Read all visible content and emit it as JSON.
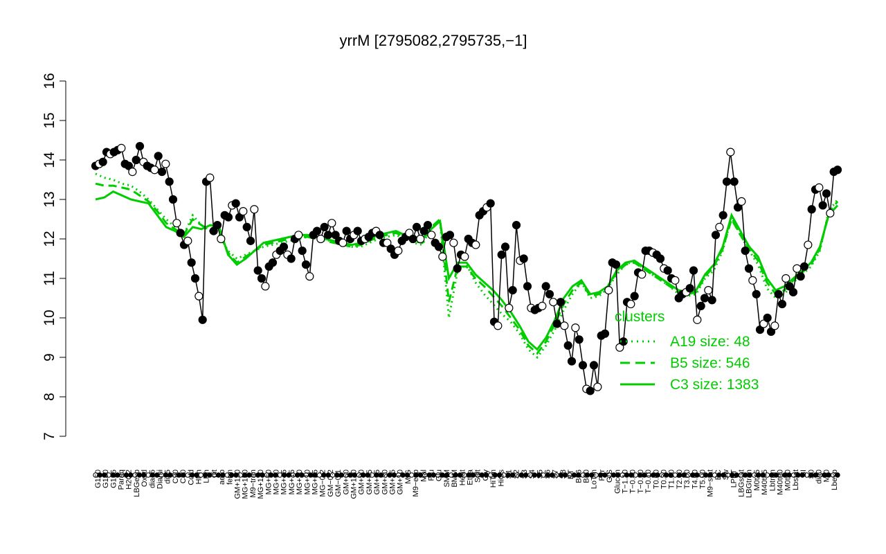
{
  "chart_data": {
    "type": "line",
    "title": "yrrM [2795082,2795735,−1]",
    "xlabel": "",
    "ylabel": "",
    "ylim": [
      7,
      16
    ],
    "y_ticks": [
      7,
      8,
      9,
      10,
      11,
      12,
      13,
      14,
      15,
      16
    ],
    "grid": false,
    "x_tick_labels": [
      "G150",
      "G180",
      "G135",
      "Paraq",
      "H2O2",
      "LBGexp",
      "Oxctl",
      "dia15",
      "Diami",
      "dia5",
      "C90",
      "C30",
      "Cold",
      "HPh",
      "LPh",
      "nit",
      "aero",
      "ferm",
      "GM+150",
      "MG+150",
      "M9−tran",
      "MG+120",
      "MG+60",
      "MG+90",
      "MG+45",
      "MG+15",
      "MG+30",
      "MG+10",
      "MG+25",
      "MG−0.2",
      "GM−0.2",
      "GM−0.1",
      "GM+60",
      "GM+120",
      "GM+90",
      "GM+45",
      "GM+15",
      "GM+30",
      "GM+25",
      "GM+10",
      "M/G",
      "M9−exp",
      "Mal",
      "Fru",
      "Glu",
      "SMM",
      "BMM",
      "Heat",
      "Etha",
      "Salt",
      "Gly",
      "HiTm",
      "HiOs",
      "S1",
      "S2",
      "S3",
      "S4",
      "S5",
      "S6",
      "S7",
      "S8",
      "BT",
      "B36",
      "B60",
      "LoTm",
      "Pyr",
      "G/S",
      "Glucon",
      "T−1.10",
      "T−0.40",
      "T−0.30",
      "T−0.10",
      "T0.00",
      "T0.30",
      "T1.00",
      "T2.00",
      "T3.00",
      "T4.00",
      "T5.00",
      "M9−stat",
      "BC",
      "Sw",
      "LPhT",
      "LBGstat",
      "LBGtran",
      "M0t45",
      "M40t45",
      "Lbtran",
      "M40t90",
      "M0t90",
      "Lbstat",
      "BI",
      "S0",
      "dia0",
      "Mt0",
      "Lbexp"
    ],
    "legend": {
      "title": "clusters",
      "placement": "right",
      "entries": [
        {
          "label": "A19 size: 48",
          "style": "dotted"
        },
        {
          "label": "B5 size: 546",
          "style": "dashed"
        },
        {
          "label": "C3 size: 1383",
          "style": "solid"
        }
      ]
    },
    "line_color": "#00cc00",
    "n_conditions": 170,
    "values": [
      13.85,
      13.9,
      13.95,
      14.2,
      14.15,
      14.2,
      14.25,
      14.3,
      13.9,
      13.85,
      13.7,
      14.0,
      14.35,
      13.95,
      13.85,
      13.8,
      13.75,
      14.1,
      13.7,
      13.9,
      13.45,
      13.0,
      12.4,
      12.15,
      11.85,
      11.95,
      11.4,
      11.0,
      10.55,
      9.95,
      13.45,
      13.55,
      12.2,
      12.35,
      12.0,
      12.6,
      12.55,
      12.85,
      12.9,
      12.55,
      12.7,
      12.3,
      11.95,
      12.75,
      11.2,
      11.0,
      10.8,
      11.3,
      11.4,
      11.6,
      11.7,
      11.8,
      11.6,
      11.5,
      12.0,
      12.1,
      11.7,
      11.35,
      11.05,
      12.1,
      12.2,
      12.0,
      12.3,
      12.1,
      12.4,
      12.1,
      11.95,
      11.9,
      12.2,
      12.0,
      12.1,
      12.2,
      11.95,
      12.0,
      12.05,
      12.15,
      12.2,
      12.1,
      11.9,
      11.9,
      11.75,
      11.6,
      11.7,
      11.95,
      12.05,
      12.15,
      12.0,
      12.3,
      12.0,
      12.2,
      12.35,
      12.1,
      11.9,
      11.8,
      11.55,
      12.05,
      12.1,
      11.9,
      11.25,
      11.6,
      11.55,
      12.0,
      11.9,
      11.85,
      12.6,
      12.7,
      12.8,
      12.9,
      9.9,
      9.8,
      11.6,
      11.8,
      10.25,
      10.7,
      12.35,
      11.45,
      11.5,
      10.8,
      10.25,
      10.2,
      10.25,
      10.3,
      10.8,
      10.6,
      10.4,
      9.85,
      10.4,
      9.8,
      9.3,
      8.9,
      9.75,
      9.45,
      8.8,
      8.2,
      8.15,
      8.8,
      8.25,
      9.55,
      9.6,
      10.7,
      11.4,
      11.35,
      9.25,
      9.4,
      10.4,
      10.35,
      10.55,
      11.15,
      11.1,
      11.7,
      11.7,
      11.65,
      11.6,
      11.5,
      11.25,
      11.2,
      11.0,
      10.95,
      10.5,
      10.6,
      10.65,
      10.75,
      11.2,
      9.95,
      10.3,
      10.5,
      10.7,
      10.45,
      12.1,
      12.3,
      12.6,
      13.45,
      14.2,
      13.45,
      12.8,
      12.95,
      11.7,
      11.25,
      10.95,
      10.6,
      9.7,
      9.85,
      10.0,
      9.65,
      9.8,
      10.6,
      10.35,
      11.0,
      10.8,
      10.65,
      11.25,
      11.05,
      11.3,
      11.85,
      12.75,
      13.25,
      13.3,
      12.85,
      13.15,
      12.65,
      13.7,
      13.75
    ],
    "series": [
      {
        "name": "A19 size: 48",
        "style": "dotted",
        "values": [
          13.65,
          13.55,
          13.5,
          13.4,
          13.35,
          13.2,
          13.0,
          12.75,
          12.5,
          12.3,
          12.1,
          12.6,
          12.35,
          12.2,
          12.1,
          11.7,
          11.5,
          11.6,
          11.7,
          11.8,
          11.85,
          11.9,
          11.95,
          12.0,
          12.05,
          12.0,
          12.0,
          11.9,
          11.85,
          11.8,
          11.8,
          11.9,
          12.0,
          12.05,
          12.1,
          12.0,
          11.9,
          11.85,
          12.3,
          12.45,
          10.0,
          11.2,
          11.35,
          10.9,
          10.6,
          10.35,
          10.1,
          9.9,
          9.6,
          9.2,
          9.0,
          9.3,
          9.7,
          10.2,
          10.6,
          10.9,
          10.5,
          10.55,
          10.75,
          11.1,
          11.35,
          11.45,
          11.25,
          11.1,
          10.95,
          10.8,
          10.6,
          10.55,
          10.6,
          11.0,
          11.2,
          11.7,
          12.55,
          12.1,
          11.7,
          11.35,
          10.75,
          10.5,
          10.6,
          10.9,
          11.1,
          11.3,
          11.7,
          12.7,
          13.0
        ]
      },
      {
        "name": "B5 size: 546",
        "style": "dashed",
        "values": [
          13.4,
          13.35,
          13.35,
          13.3,
          13.25,
          13.1,
          12.95,
          12.7,
          12.4,
          12.25,
          12.1,
          12.5,
          12.35,
          12.2,
          12.15,
          11.65,
          11.4,
          11.55,
          11.7,
          11.85,
          11.9,
          11.95,
          12.0,
          12.05,
          12.05,
          12.0,
          11.95,
          11.9,
          11.85,
          11.8,
          11.85,
          11.95,
          12.05,
          12.1,
          12.15,
          12.05,
          11.95,
          11.9,
          12.3,
          12.5,
          10.4,
          11.3,
          11.3,
          11.0,
          10.8,
          10.55,
          10.3,
          10.0,
          9.7,
          9.3,
          9.1,
          9.4,
          9.85,
          10.35,
          10.7,
          10.9,
          10.55,
          10.6,
          10.8,
          11.15,
          11.35,
          11.4,
          11.25,
          11.1,
          10.95,
          10.8,
          10.65,
          10.6,
          10.65,
          11.05,
          11.3,
          11.75,
          12.5,
          12.1,
          11.75,
          11.45,
          10.9,
          10.6,
          10.7,
          10.95,
          11.15,
          11.35,
          11.75,
          12.65,
          12.95
        ]
      },
      {
        "name": "C3 size: 1383",
        "style": "solid",
        "values": [
          13.0,
          13.05,
          13.2,
          13.1,
          13.0,
          12.95,
          12.9,
          12.6,
          12.3,
          12.2,
          12.05,
          12.3,
          12.25,
          12.35,
          12.3,
          11.6,
          11.35,
          11.5,
          11.7,
          11.9,
          11.95,
          12.0,
          12.05,
          12.1,
          12.1,
          12.05,
          12.0,
          11.95,
          11.9,
          11.85,
          11.9,
          12.0,
          12.1,
          12.15,
          12.2,
          12.1,
          12.05,
          12.0,
          12.25,
          12.45,
          11.0,
          11.4,
          11.4,
          11.1,
          10.9,
          10.7,
          10.45,
          10.15,
          9.8,
          9.4,
          9.2,
          9.5,
          9.95,
          10.5,
          10.8,
          10.95,
          10.6,
          10.65,
          10.8,
          11.2,
          11.4,
          11.45,
          11.3,
          11.15,
          11.0,
          10.85,
          10.7,
          10.65,
          10.7,
          11.1,
          11.35,
          11.8,
          12.6,
          12.2,
          11.8,
          11.55,
          11.0,
          10.7,
          10.8,
          11.0,
          11.2,
          11.4,
          11.8,
          12.6,
          12.85
        ]
      }
    ]
  }
}
